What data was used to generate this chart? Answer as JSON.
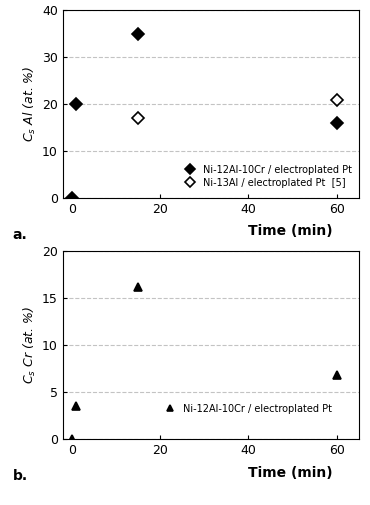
{
  "panel_a": {
    "series1": {
      "label": "Ni-12Al-10Cr / electroplated Pt",
      "x": [
        0,
        1,
        15,
        60
      ],
      "y": [
        0,
        20,
        35,
        16
      ],
      "marker": "D",
      "color": "black",
      "fillstyle": "full",
      "markersize": 6
    },
    "series2": {
      "label": "Ni-13Al / electroplated Pt  [5]",
      "x": [
        15,
        60
      ],
      "y": [
        17,
        21
      ],
      "marker": "D",
      "color": "black",
      "fillstyle": "none",
      "markersize": 6
    },
    "ylabel": "$C_s$ Al (at. %)",
    "ylim": [
      0,
      40
    ],
    "yticks": [
      0,
      10,
      20,
      30,
      40
    ],
    "xlim": [
      -2,
      65
    ],
    "xticks": [
      0,
      20,
      40,
      60
    ],
    "panel_label": "a."
  },
  "panel_b": {
    "series1": {
      "label": "Ni-12Al-10Cr / electroplated Pt",
      "x": [
        0,
        1,
        15,
        60
      ],
      "y": [
        0,
        3.5,
        16.2,
        6.8
      ],
      "marker": "^",
      "color": "black",
      "fillstyle": "full",
      "markersize": 6
    },
    "ylabel": "$C_s$ Cr (at. %)",
    "ylim": [
      0,
      20
    ],
    "yticks": [
      0,
      5,
      10,
      15,
      20
    ],
    "xlim": [
      -2,
      65
    ],
    "xticks": [
      0,
      20,
      40,
      60
    ],
    "panel_label": "b."
  },
  "xlabel": "Time (min)",
  "grid_color": "#aaaaaa",
  "grid_style": "--",
  "grid_alpha": 0.7
}
